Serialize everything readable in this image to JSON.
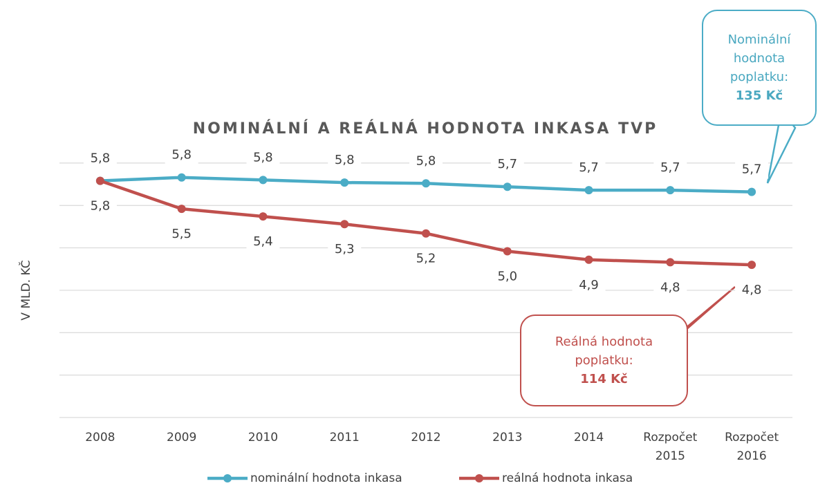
{
  "chart_data": {
    "type": "line",
    "title": "NOMINÁLNÍ A REÁLNÁ HODNOTA INKASA TVP",
    "y_axis_label": "V MLD. KČ",
    "categories": [
      "2008",
      "2009",
      "2010",
      "2011",
      "2012",
      "2013",
      "2014",
      "Rozpočet 2015",
      "Rozpočet 2016"
    ],
    "series": [
      {
        "name": "nominální hodnota inkasa",
        "color": "#4bacc6",
        "values": [
          5.79,
          5.83,
          5.8,
          5.77,
          5.76,
          5.72,
          5.68,
          5.68,
          5.66
        ],
        "value_labels": [
          "5,8",
          "5,8",
          "5,8",
          "5,8",
          "5,8",
          "5,7",
          "5,7",
          "5,7",
          "5,7"
        ]
      },
      {
        "name": "reálná hodnota inkasa",
        "color": "#c0504d",
        "values": [
          5.79,
          5.46,
          5.37,
          5.28,
          5.17,
          4.96,
          4.86,
          4.83,
          4.8
        ],
        "value_labels": [
          "5,8",
          "5,5",
          "5,4",
          "5,3",
          "5,2",
          "5,0",
          "4,9",
          "4,8",
          "4,8"
        ]
      }
    ],
    "ylim": [
      3.0,
      6.5
    ],
    "yticks": [
      3.0,
      3.5,
      4.0,
      4.5,
      5.0,
      5.5,
      6.0
    ],
    "grid": true,
    "legend": "bottom",
    "annotations": [
      {
        "text": "Nominální hodnota poplatku:",
        "value": "135 Kč"
      },
      {
        "text": "Reálná hodnota poplatku:",
        "value": "114 Kč"
      }
    ]
  }
}
